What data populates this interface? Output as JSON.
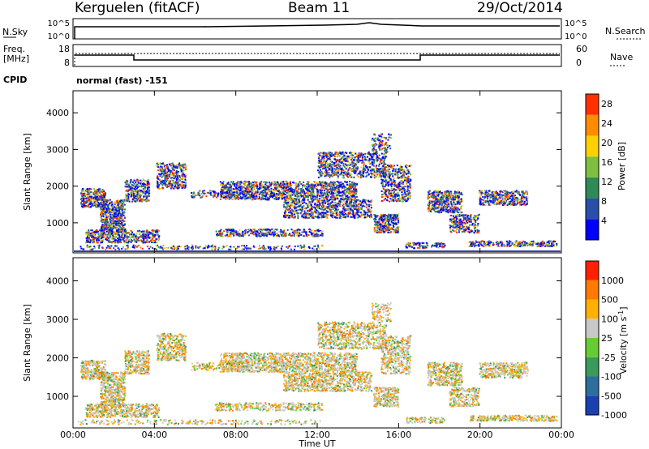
{
  "header": {
    "station": "Kerguelen (fitACF)",
    "beam": "Beam 11",
    "date": "29/Oct/2014"
  },
  "top_panels": {
    "nsky_label": "N.Sky",
    "nsky_ticks": [
      "10^5",
      "10^0"
    ],
    "nsearch_label": "N.Search",
    "nsearch_ticks": [
      "10^5",
      "10^0"
    ],
    "freq_label": "Freq.",
    "freq_unit": "[MHz]",
    "freq_ticks": [
      "18",
      "8"
    ],
    "nave_label": "Nave",
    "nave_ticks": [
      "60",
      "0"
    ],
    "cpid_label": "CPID",
    "cpid_value": "normal (fast) -151"
  },
  "chart_data": [
    {
      "type": "heatmap",
      "name": "power",
      "ylabel": "Slant Range [km]",
      "ylim": [
        180,
        4600
      ],
      "yticks": [
        "4000",
        "3000",
        "2000",
        "1000"
      ],
      "colorbar_label": "Power [dB]",
      "colorbar_ticks": [
        "28",
        "24",
        "20",
        "16",
        "12",
        "8",
        "4"
      ],
      "colorbar_colors": [
        "#0000ff",
        "#2a4fa8",
        "#2e8b57",
        "#7fbf3f",
        "#ffd000",
        "#ff8c00",
        "#ff3000"
      ],
      "colorbar_range": [
        0,
        30
      ]
    },
    {
      "type": "heatmap",
      "name": "velocity",
      "ylabel": "Slant Range [km]",
      "ylim": [
        180,
        4600
      ],
      "yticks": [
        "4000",
        "3000",
        "2000",
        "1000"
      ],
      "colorbar_label": "Velocity [m s",
      "colorbar_label_sup": "-1",
      "colorbar_label_end": "]",
      "colorbar_ticks": [
        "1000",
        "500",
        "100",
        "25",
        "-25",
        "-100",
        "-500",
        "-1000"
      ],
      "colorbar_colors": [
        "#1a3fb0",
        "#2e6e9e",
        "#3a9a5a",
        "#66cc33",
        "#c8c8c8",
        "#ffb000",
        "#ff7a00",
        "#ff2000"
      ]
    }
  ],
  "x_axis": {
    "label": "Time UT",
    "ticks": [
      "00:00",
      "04:00",
      "08:00",
      "12:00",
      "16:00",
      "20:00",
      "00:00"
    ]
  }
}
